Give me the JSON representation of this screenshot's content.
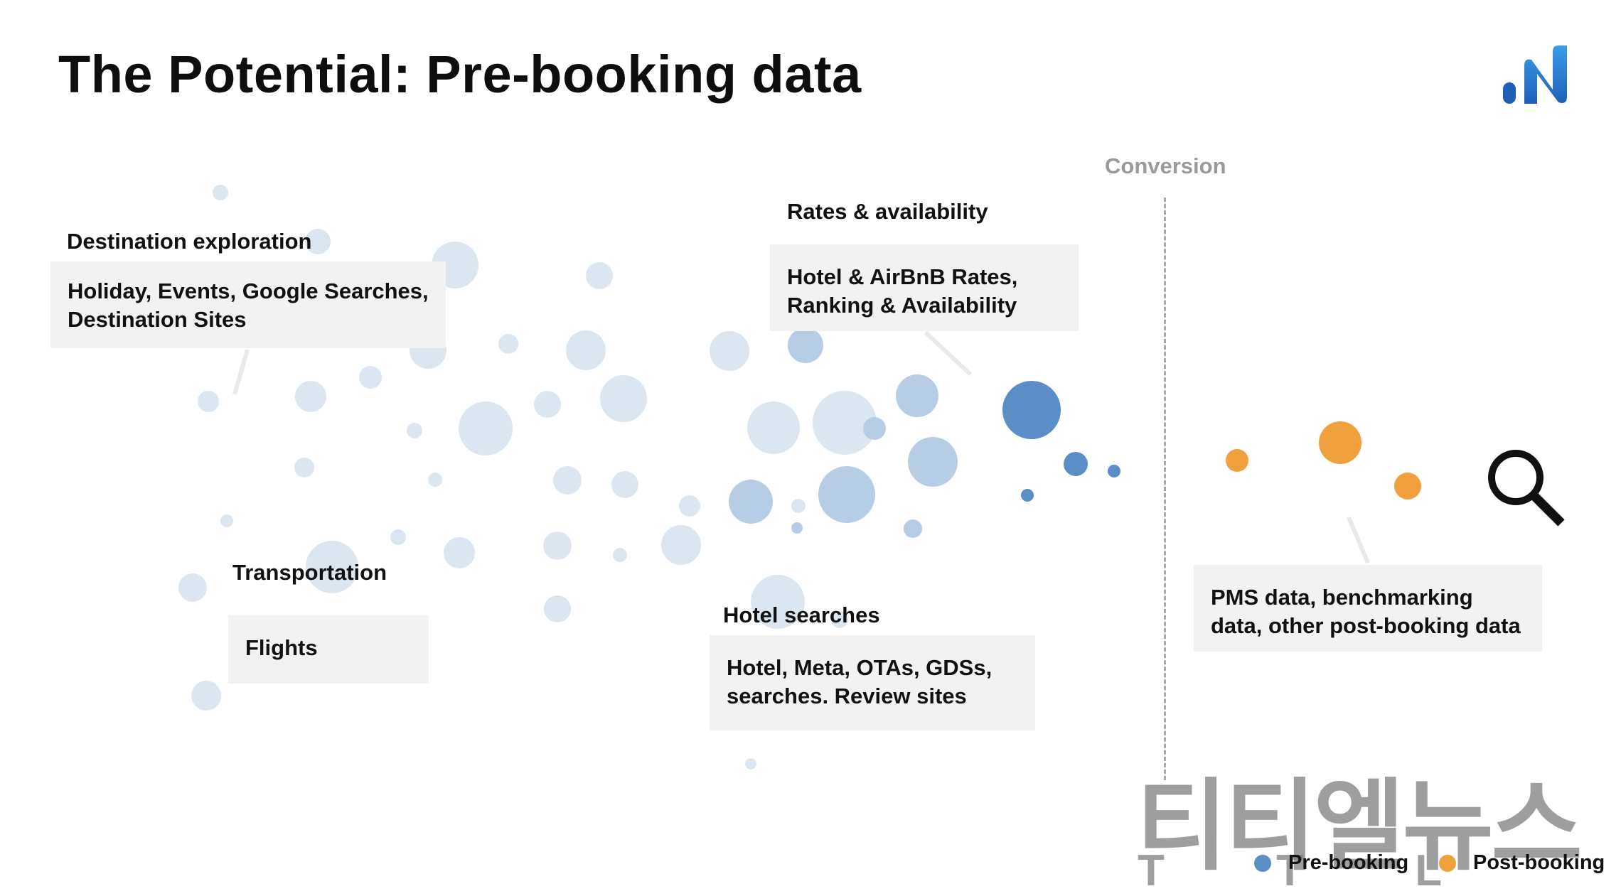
{
  "title": "The Potential: Pre-booking data",
  "logo": {
    "icon": "brand-n-logo-icon",
    "color": "#2d7dd2"
  },
  "conversion_label": "Conversion",
  "groups": [
    {
      "heading": "Destination exploration",
      "body": [
        "Holiday, Events, Google Searches,",
        "Destination Sites"
      ]
    },
    {
      "heading": "Rates & availability",
      "body": [
        "Hotel & AirBnB Rates,",
        "Ranking & Availability"
      ]
    },
    {
      "heading": "Transportation",
      "body": [
        "Flights"
      ]
    },
    {
      "heading": "Hotel searches",
      "body": [
        "Hotel, Meta, OTAs, GDSs,",
        "searches. Review sites"
      ]
    },
    {
      "heading": "",
      "body": [
        "PMS data, benchmarking",
        "data, other post-booking data"
      ]
    }
  ],
  "search_icon": "magnifier-icon",
  "legend": [
    {
      "label": "Pre-booking",
      "color": "#5b8ec6"
    },
    {
      "label": "Post-booking",
      "color": "#f0a03c"
    }
  ],
  "watermark": {
    "text": "티티엘뉴스",
    "sub": "T T L"
  },
  "colors": {
    "faint_bubble": "#dce6f1",
    "mid_bubble": "#b7cde6",
    "pre_booking": "#5b8ec6",
    "post_booking": "#f0a03c"
  }
}
